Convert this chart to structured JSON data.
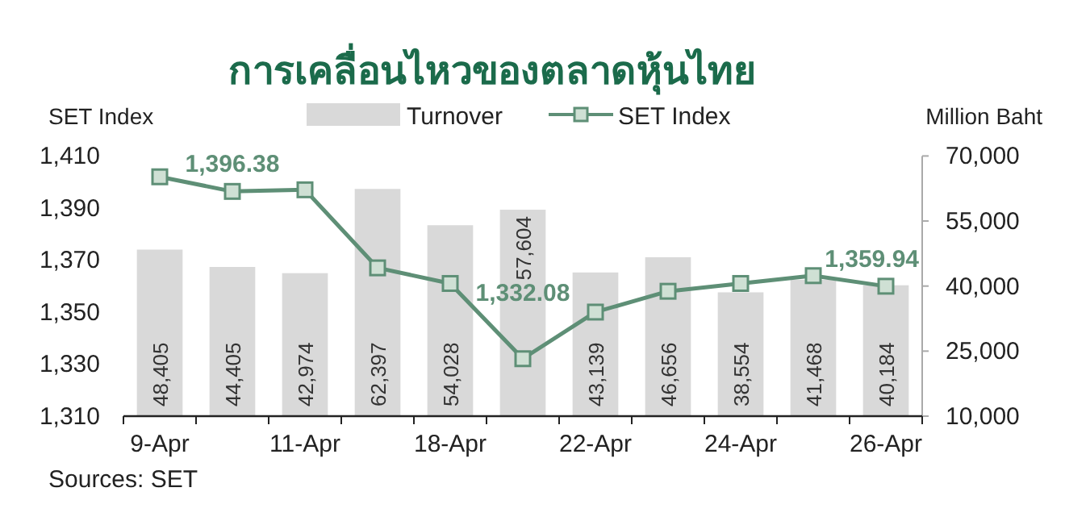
{
  "chart_data": {
    "type": "bar",
    "title": "การเคลื่อนไหวของตลาดหุ้นไทย",
    "ylabel": "SET Index",
    "y2label": "Million Baht",
    "categories": [
      "9-Apr",
      null,
      "11-Apr",
      null,
      "18-Apr",
      null,
      "22-Apr",
      null,
      "24-Apr",
      null,
      "26-Apr"
    ],
    "series": [
      {
        "name": "Turnover",
        "axis": "y2",
        "color": "#d9d9d9",
        "values": [
          48405,
          44405,
          42974,
          62397,
          54028,
          57604,
          43139,
          46656,
          38554,
          41468,
          40184
        ],
        "value_labels": [
          "48,405",
          "44,405",
          "42,974",
          "62,397",
          "54,028",
          "57,604",
          "43,139",
          "46,656",
          "38,554",
          "41,468",
          "40,184"
        ]
      },
      {
        "name": "SET Index",
        "type": "line",
        "color": "#5e8f76",
        "values": [
          1402,
          1396.38,
          1397,
          1367,
          1361,
          1332.08,
          1350,
          1358,
          1361,
          1364,
          1359.94
        ],
        "value_labels": [
          null,
          "1,396.38",
          null,
          null,
          null,
          "1,332.08",
          null,
          null,
          null,
          null,
          "1,359.94"
        ]
      }
    ],
    "ylim": [
      1310,
      1410
    ],
    "yticks": [
      {
        "value": 1310,
        "label": "1,310"
      },
      {
        "value": 1330,
        "label": "1,330"
      },
      {
        "value": 1350,
        "label": "1,350"
      },
      {
        "value": 1370,
        "label": "1,370"
      },
      {
        "value": 1390,
        "label": "1,390"
      },
      {
        "value": 1410,
        "label": "1,410"
      }
    ],
    "y2lim": [
      10000,
      70000
    ],
    "y2ticks": [
      {
        "value": 10000,
        "label": "10,000"
      },
      {
        "value": 25000,
        "label": "25,000"
      },
      {
        "value": 40000,
        "label": "40,000"
      },
      {
        "value": 55000,
        "label": "55,000"
      },
      {
        "value": 70000,
        "label": "70,000"
      }
    ],
    "marker": "square",
    "legend": "top",
    "annotations": [
      "Sources: SET"
    ]
  }
}
